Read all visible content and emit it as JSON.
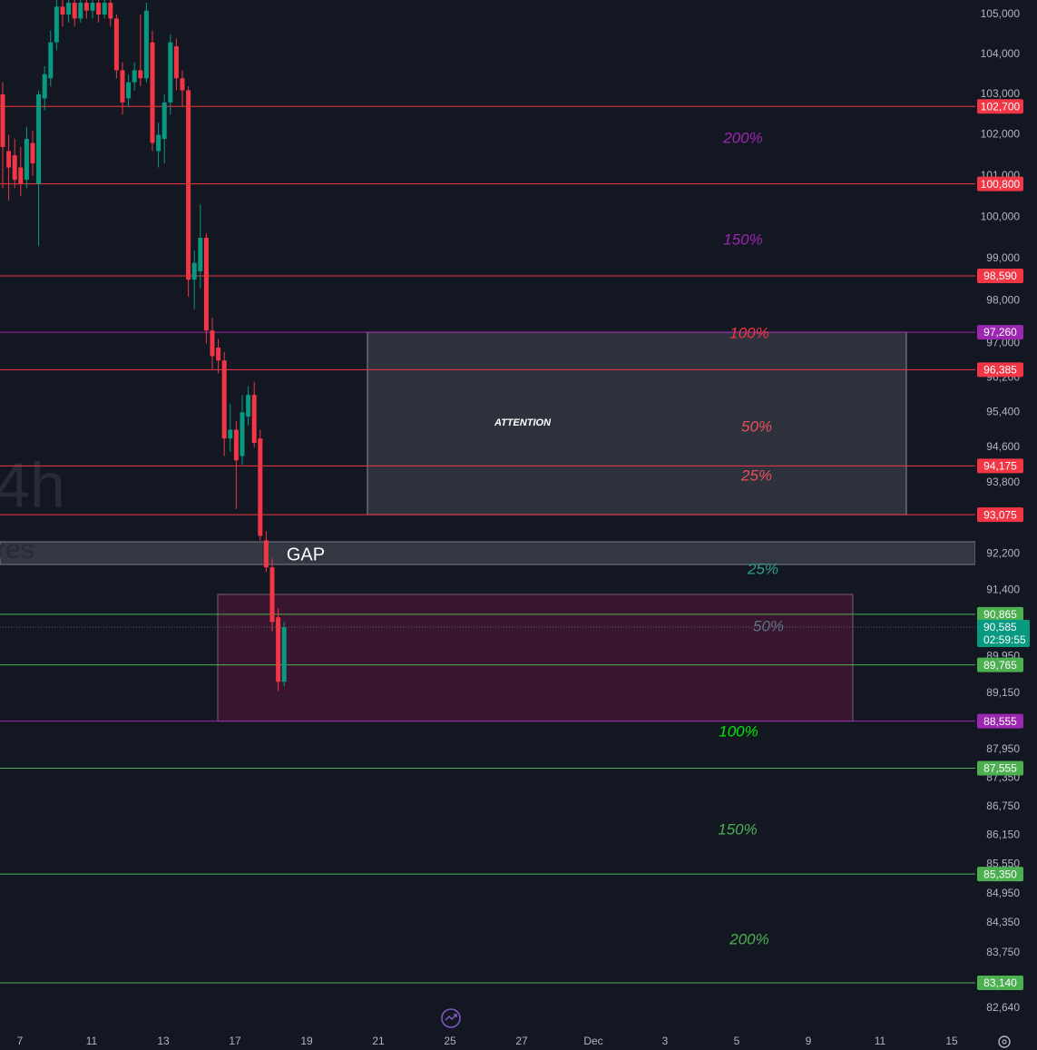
{
  "chart_data": {
    "type": "candlestick",
    "log_scale": true,
    "ylim": [
      82200,
      105370
    ],
    "yticks": [
      {
        "value": 105000,
        "label": "105,000"
      },
      {
        "value": 104000,
        "label": "104,000"
      },
      {
        "value": 103000,
        "label": "103,000"
      },
      {
        "value": 102000,
        "label": "102,000"
      },
      {
        "value": 101000,
        "label": "101,000"
      },
      {
        "value": 100000,
        "label": "100,000"
      },
      {
        "value": 99000,
        "label": "99,000"
      },
      {
        "value": 98000,
        "label": "98,000"
      },
      {
        "value": 97000,
        "label": "97,000"
      },
      {
        "value": 96200,
        "label": "96,200"
      },
      {
        "value": 95400,
        "label": "95,400"
      },
      {
        "value": 94600,
        "label": "94,600"
      },
      {
        "value": 93800,
        "label": "93,800"
      },
      {
        "value": 92200,
        "label": "92,200"
      },
      {
        "value": 91400,
        "label": "91,400"
      },
      {
        "value": 89950,
        "label": "89,950"
      },
      {
        "value": 89150,
        "label": "89,150"
      },
      {
        "value": 87950,
        "label": "87,950"
      },
      {
        "value": 87350,
        "label": "87,350"
      },
      {
        "value": 86750,
        "label": "86,750"
      },
      {
        "value": 86150,
        "label": "86,150"
      },
      {
        "value": 85550,
        "label": "85,550"
      },
      {
        "value": 84950,
        "label": "84,950"
      },
      {
        "value": 84350,
        "label": "84,350"
      },
      {
        "value": 83750,
        "label": "83,750"
      },
      {
        "value": 83150,
        "label": "83,150"
      },
      {
        "value": 82640,
        "label": "82,640"
      }
    ],
    "x_labels": [
      "7",
      "11",
      "13",
      "17",
      "19",
      "21",
      "25",
      "27",
      "Dec",
      "3",
      "5",
      "9",
      "11",
      "15"
    ],
    "up_color": "#089981",
    "down_color": "#f23645",
    "open": [
      103000,
      101600,
      101500,
      101200,
      100900,
      101800,
      100800,
      102900,
      103400,
      104300,
      105200,
      105000,
      105300,
      104900,
      105300,
      105100,
      105300,
      105000,
      105300,
      104900,
      103600,
      102900,
      103300,
      103600,
      103400,
      104300,
      101600,
      101900,
      102800,
      104200,
      103400,
      103100,
      98500,
      98700,
      99500,
      97300,
      96900,
      96600,
      94800,
      95000,
      94400,
      95300,
      95800,
      94800,
      92500,
      91900,
      90800,
      89400
    ],
    "high": [
      103300,
      102000,
      101900,
      101700,
      102200,
      102100,
      103100,
      103700,
      104600,
      105400,
      105400,
      105400,
      105400,
      105400,
      105400,
      105400,
      105400,
      105400,
      105400,
      105000,
      103800,
      103500,
      103800,
      105000,
      105300,
      104600,
      102300,
      103000,
      104500,
      104400,
      103600,
      103200,
      99200,
      100300,
      99600,
      97600,
      97100,
      96800,
      95600,
      95200,
      95800,
      96000,
      96100,
      95000,
      92700,
      92100,
      91000,
      90700
    ],
    "low": [
      100700,
      100400,
      100700,
      100500,
      100700,
      101000,
      99300,
      102600,
      103200,
      104100,
      104700,
      104800,
      104700,
      104800,
      104900,
      104900,
      104800,
      104900,
      104700,
      103400,
      102500,
      102700,
      103100,
      103200,
      103300,
      101600,
      101200,
      101300,
      102500,
      103100,
      102700,
      98100,
      97800,
      98300,
      97000,
      96400,
      96300,
      94400,
      94500,
      93200,
      94200,
      95100,
      94600,
      92500,
      91800,
      90500,
      89200,
      89300
    ],
    "close": [
      101700,
      101200,
      100900,
      100800,
      101900,
      101300,
      103000,
      103500,
      104300,
      105200,
      105000,
      105300,
      104900,
      105300,
      105100,
      105300,
      105000,
      105300,
      104900,
      103600,
      102800,
      103300,
      103600,
      103400,
      105100,
      101800,
      102000,
      102800,
      104300,
      103400,
      103100,
      98500,
      98900,
      99500,
      97300,
      96700,
      96600,
      94800,
      95000,
      94300,
      95400,
      95800,
      94700,
      92600,
      91900,
      90700,
      89400,
      90585
    ],
    "levels": [
      {
        "value": 102700,
        "label": "102,700",
        "color": "#f23645"
      },
      {
        "value": 100800,
        "label": "100,800",
        "color": "#f23645"
      },
      {
        "value": 98590,
        "label": "98,590",
        "color": "#f23645"
      },
      {
        "value": 97260,
        "label": "97,260",
        "color": "#9c27b0"
      },
      {
        "value": 96385,
        "label": "96,385",
        "color": "#f23645"
      },
      {
        "value": 94175,
        "label": "94,175",
        "color": "#f23645"
      },
      {
        "value": 93075,
        "label": "93,075",
        "color": "#f23645"
      },
      {
        "value": 90865,
        "label": "90,865",
        "color": "#4caf50"
      },
      {
        "value": 89765,
        "label": "89,765",
        "color": "#4caf50"
      },
      {
        "value": 88555,
        "label": "88,555",
        "color": "#9c27b0"
      },
      {
        "value": 87555,
        "label": "87,555",
        "color": "#4caf50"
      },
      {
        "value": 85350,
        "label": "85,350",
        "color": "#4caf50"
      },
      {
        "value": 83140,
        "label": "83,140",
        "color": "#4caf50"
      }
    ],
    "current_price": {
      "value": 90585,
      "label": "90,585"
    },
    "countdown": "02:59:55",
    "annotations": [
      {
        "text": "200%",
        "color": "#9c27b0"
      },
      {
        "text": "150%",
        "color": "#9c27b0"
      },
      {
        "text": "100%",
        "color": "#f23645"
      },
      {
        "text": "50%",
        "color": "#e8505b"
      },
      {
        "text": "25%",
        "color": "#e8505b"
      },
      {
        "text": "25%",
        "color": "#2f9e8f"
      },
      {
        "text": "50%",
        "color": "#5d7583"
      },
      {
        "text": "100%",
        "color": "#00e600"
      },
      {
        "text": "150%",
        "color": "#4caf50"
      },
      {
        "text": "200%",
        "color": "#4caf50"
      },
      {
        "text": "ATTENTION",
        "color": "#ffffff"
      },
      {
        "text": "GAP",
        "color": "#ffffff"
      }
    ],
    "watermarks": [
      "4h",
      "res"
    ]
  }
}
